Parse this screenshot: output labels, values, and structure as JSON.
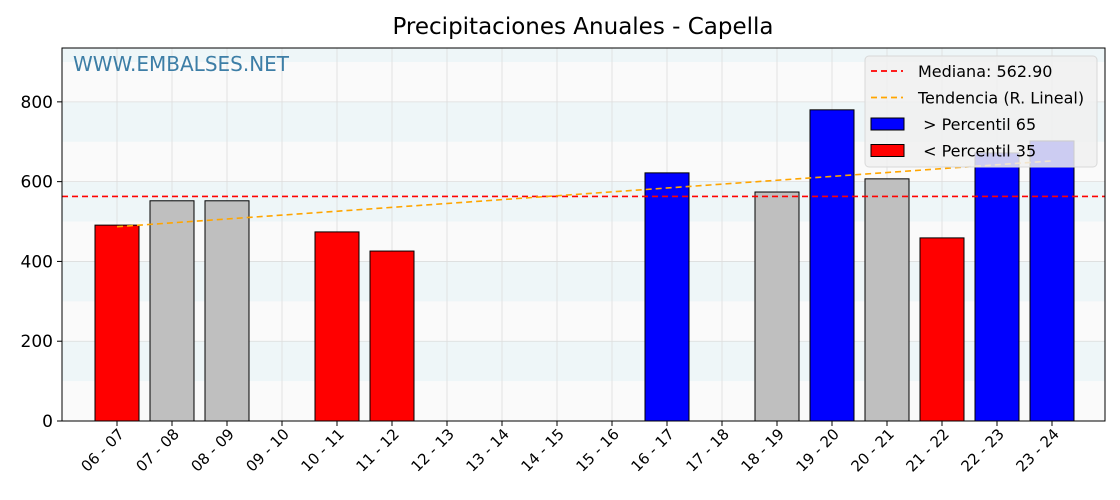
{
  "chart_data": {
    "type": "bar",
    "title": "Precipitaciones Anuales - Capella",
    "watermark": "WWW.EMBALSES.NET",
    "xlabel": "",
    "ylabel": "",
    "ylim": [
      0,
      935
    ],
    "yticks": [
      0,
      200,
      400,
      600,
      800
    ],
    "grid": true,
    "categories": [
      "06 - 07",
      "07 - 08",
      "08 - 09",
      "09 - 10",
      "10 - 11",
      "11 - 12",
      "12 - 13",
      "13 - 14",
      "14 - 15",
      "15 - 16",
      "16 - 17",
      "17 - 18",
      "18 - 19",
      "19 - 20",
      "20 - 21",
      "21 - 22",
      "22 - 23",
      "23 - 24"
    ],
    "values": [
      491,
      552,
      552,
      0,
      474,
      426,
      0,
      0,
      0,
      0,
      622,
      0,
      574,
      780,
      607,
      459,
      672,
      702
    ],
    "bar_classes": [
      "low",
      "mid",
      "mid",
      "none",
      "low",
      "low",
      "none",
      "none",
      "none",
      "none",
      "high",
      "none",
      "mid",
      "high",
      "mid",
      "low",
      "high",
      "high"
    ],
    "median": 562.9,
    "trend": {
      "start": 487,
      "end": 652
    },
    "colors": {
      "high": "#0000ff",
      "low": "#ff0000",
      "mid": "#bfbfbf",
      "median": "#ff0000",
      "trend": "#ffa500",
      "title": "#1a5276",
      "watermark": "#3d7ea6"
    },
    "legend": {
      "position": "top-right",
      "entries": [
        "Mediana: 562.90",
        "Tendencia (R. Lineal)",
        " > Percentil 65",
        " < Percentil 35"
      ]
    }
  }
}
